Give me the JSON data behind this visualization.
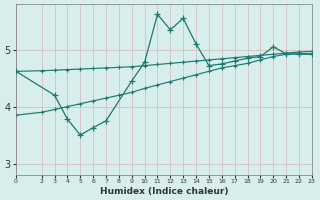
{
  "xlabel": "Humidex (Indice chaleur)",
  "background_color": "#d8eeed",
  "line_color": "#1a7a6e",
  "xlim": [
    0,
    23
  ],
  "ylim": [
    2.8,
    5.8
  ],
  "yticks": [
    3,
    4,
    5
  ],
  "xticks": [
    0,
    2,
    3,
    4,
    5,
    6,
    7,
    8,
    9,
    10,
    11,
    12,
    13,
    14,
    15,
    16,
    17,
    18,
    19,
    20,
    21,
    22,
    23
  ],
  "line1_x": [
    0,
    3,
    4,
    5,
    6,
    7,
    9,
    10,
    11,
    12,
    13,
    14,
    15,
    16,
    17,
    18,
    19,
    20,
    21,
    22,
    23
  ],
  "line1_y": [
    4.62,
    4.2,
    3.78,
    3.5,
    3.63,
    3.75,
    4.45,
    4.78,
    5.62,
    5.35,
    5.55,
    5.1,
    4.72,
    4.75,
    4.8,
    4.85,
    4.88,
    5.05,
    4.93,
    4.92,
    4.92
  ],
  "line2_x": [
    0,
    2,
    3,
    4,
    5,
    6,
    7,
    8,
    9,
    10,
    11,
    12,
    13,
    14,
    15,
    16,
    17,
    18,
    19,
    20,
    21,
    22,
    23
  ],
  "line2_y": [
    4.62,
    4.63,
    4.64,
    4.65,
    4.66,
    4.67,
    4.68,
    4.69,
    4.7,
    4.72,
    4.74,
    4.76,
    4.78,
    4.8,
    4.82,
    4.84,
    4.86,
    4.88,
    4.9,
    4.92,
    4.94,
    4.96,
    4.97
  ],
  "line3_x": [
    0,
    2,
    3,
    4,
    5,
    6,
    7,
    8,
    9,
    10,
    11,
    12,
    13,
    14,
    15,
    16,
    17,
    18,
    19,
    20,
    21,
    22,
    23
  ],
  "line3_y": [
    3.85,
    3.9,
    3.95,
    4.0,
    4.05,
    4.1,
    4.15,
    4.2,
    4.25,
    4.32,
    4.38,
    4.44,
    4.5,
    4.56,
    4.62,
    4.68,
    4.72,
    4.76,
    4.82,
    4.88,
    4.92,
    4.93,
    4.93
  ]
}
